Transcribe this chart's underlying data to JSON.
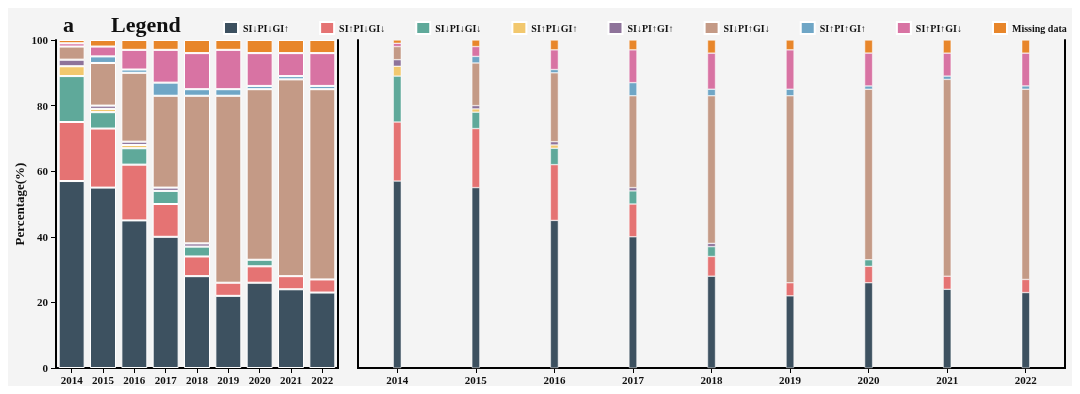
{
  "chart_data": [
    {
      "type": "bar",
      "title": "a",
      "legend_title": "Legend",
      "ylabel": "Percentage(%)",
      "stacked": true,
      "grid": false,
      "legend": "top",
      "categories": [
        "2014",
        "2015",
        "2016",
        "2017",
        "2018",
        "2019",
        "2020",
        "2021",
        "2022"
      ],
      "ylim": [
        0,
        100
      ],
      "yticks": [
        0,
        20,
        40,
        60,
        80,
        100
      ],
      "series": [
        {
          "name": "SI↓PI↓GI↑",
          "color": "#3d5160",
          "values": [
            57,
            55,
            45,
            40,
            28,
            22,
            26,
            24,
            23
          ]
        },
        {
          "name": "SI↑PI↓GI↓",
          "color": "#e57373",
          "values": [
            18,
            18,
            17,
            10,
            6,
            4,
            5,
            4,
            4
          ]
        },
        {
          "name": "SI↓PI↓GI↓",
          "color": "#5fa99a",
          "values": [
            14,
            5,
            5,
            4,
            3,
            0,
            2,
            0,
            0
          ]
        },
        {
          "name": "SI↑PI↓GI↑",
          "color": "#f2c86e",
          "values": [
            3,
            1,
            1,
            0,
            0,
            0,
            0,
            0,
            0
          ]
        },
        {
          "name": "SI↓PI↑GI↑",
          "color": "#8e739a",
          "values": [
            2,
            1,
            1,
            1,
            1,
            0,
            0,
            0,
            0
          ]
        },
        {
          "name": "SI↓PI↑GI↓",
          "color": "#c49a86",
          "values": [
            4,
            13,
            21,
            28,
            45,
            57,
            52,
            60,
            58
          ]
        },
        {
          "name": "SI↑PI↑GI↑",
          "color": "#6fa6c6",
          "values": [
            0,
            2,
            1,
            4,
            2,
            2,
            1,
            1,
            1
          ]
        },
        {
          "name": "SI↑PI↑GI↓",
          "color": "#d873a3",
          "values": [
            1,
            3,
            6,
            10,
            11,
            12,
            10,
            7,
            10
          ]
        },
        {
          "name": "Missing data",
          "color": "#e8862a",
          "values": [
            1,
            2,
            3,
            3,
            4,
            3,
            4,
            4,
            4
          ]
        }
      ]
    },
    {
      "type": "bar",
      "stacked": true,
      "grid": false,
      "tick_labels": "x",
      "categories": [
        "2014",
        "2015",
        "2016",
        "2017",
        "2018",
        "2019",
        "2020",
        "2021",
        "2022"
      ],
      "ylim": [
        0,
        100
      ],
      "series": [
        {
          "color": "#3d5160",
          "values": [
            57,
            55,
            45,
            40,
            28,
            22,
            26,
            24,
            23
          ]
        },
        {
          "color": "#e57373",
          "values": [
            18,
            18,
            17,
            10,
            6,
            4,
            5,
            4,
            4
          ]
        },
        {
          "color": "#5fa99a",
          "values": [
            14,
            5,
            5,
            4,
            3,
            0,
            2,
            0,
            0
          ]
        },
        {
          "color": "#f2c86e",
          "values": [
            3,
            1,
            1,
            0,
            0,
            0,
            0,
            0,
            0
          ]
        },
        {
          "color": "#8e739a",
          "values": [
            2,
            1,
            1,
            1,
            1,
            0,
            0,
            0,
            0
          ]
        },
        {
          "color": "#c49a86",
          "values": [
            4,
            13,
            21,
            28,
            45,
            57,
            52,
            60,
            58
          ]
        },
        {
          "color": "#6fa6c6",
          "values": [
            0,
            2,
            1,
            4,
            2,
            2,
            1,
            1,
            1
          ]
        },
        {
          "color": "#d873a3",
          "values": [
            1,
            3,
            6,
            10,
            11,
            12,
            10,
            7,
            10
          ]
        },
        {
          "color": "#e8862a",
          "values": [
            1,
            2,
            3,
            3,
            4,
            3,
            4,
            4,
            4
          ]
        }
      ]
    }
  ]
}
